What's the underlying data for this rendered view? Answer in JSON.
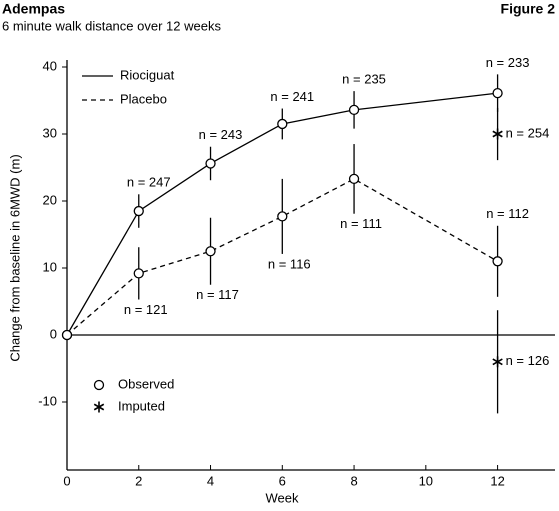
{
  "chart_data": {
    "type": "line",
    "title": "Adempas",
    "subtitle": "6 minute walk distance over 12 weeks",
    "figure_label": "Figure 2",
    "x_label": "Week",
    "y_label": "Change from baseline in 6MWD (m)",
    "xlim": [
      0,
      13.6
    ],
    "xticks": [
      0,
      2,
      4,
      6,
      8,
      10,
      12
    ],
    "ylim": [
      -20,
      40
    ],
    "yticks": [
      -10,
      0,
      10,
      20,
      30,
      40
    ],
    "x": [
      0,
      2,
      4,
      6,
      8,
      12
    ],
    "series": [
      {
        "name": "Riociguat",
        "color": "#000000",
        "line_style": "solid",
        "values": [
          0,
          18.5,
          25.6,
          31.5,
          33.6,
          36.1
        ],
        "errors": [
          null,
          2.5,
          2.5,
          2.3,
          2.8,
          2.8
        ],
        "n_labels": [
          null,
          "n = 247",
          "n = 243",
          "n = 241",
          "n = 235",
          "n = 233"
        ],
        "imputed_x": 12,
        "imputed_value": 30,
        "imputed_error": 3.9,
        "imputed_n_label": "n = 254"
      },
      {
        "name": "Placebo",
        "color": "#000000",
        "line_style": "dashed",
        "values": [
          0,
          9.2,
          12.5,
          17.7,
          23.3,
          11
        ],
        "errors": [
          null,
          3.9,
          5,
          5.6,
          5.2,
          5.3
        ],
        "n_labels": [
          null,
          "n = 121",
          "n = 117",
          "n = 116",
          "n = 111",
          "n = 112"
        ],
        "imputed_x": 12,
        "imputed_value": -4,
        "imputed_error": 7.7,
        "imputed_n_label": "n = 126"
      }
    ],
    "marker_legend": {
      "observed": "Observed",
      "imputed": "Imputed"
    }
  }
}
